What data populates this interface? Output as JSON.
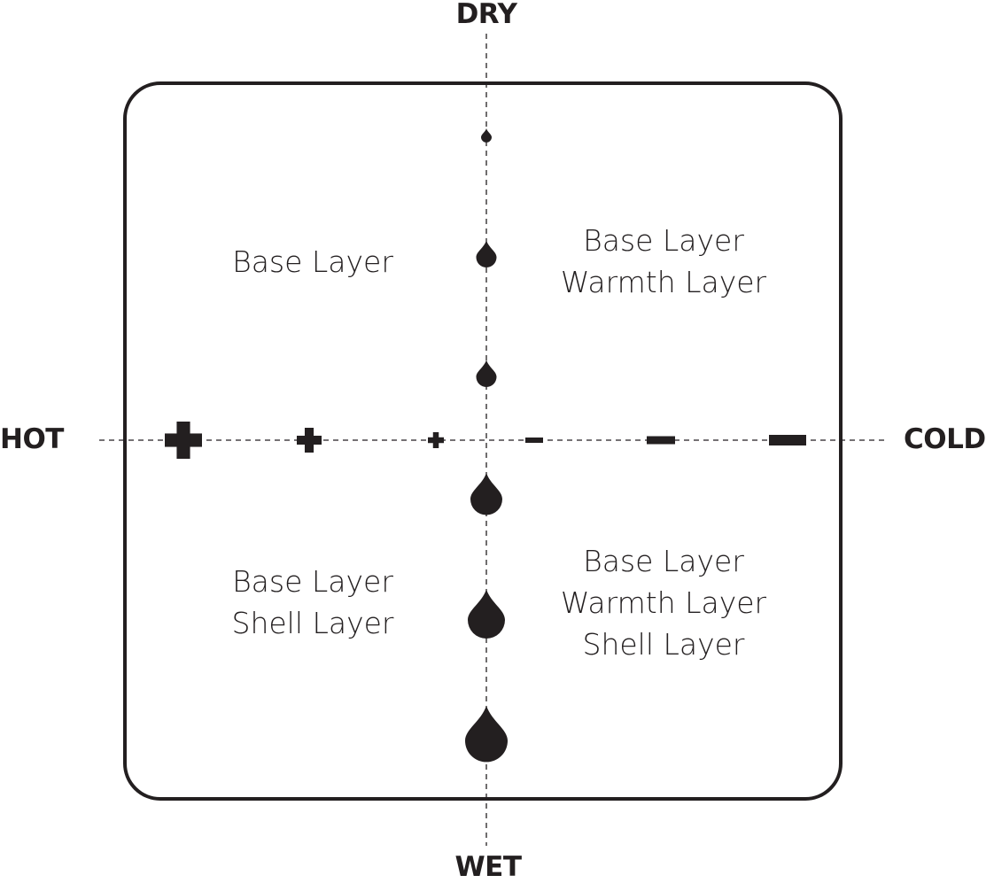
{
  "axes": {
    "top": "DRY",
    "bottom": "WET",
    "left": "HOT",
    "right": "COLD"
  },
  "quadrants": {
    "top_left": [
      "Base Layer"
    ],
    "top_right": [
      "Base Layer",
      "Warmth Layer"
    ],
    "bottom_left": [
      "Base Layer",
      "Shell Layer"
    ],
    "bottom_right": [
      "Base Layer",
      "Warmth Layer",
      "Shell Layer"
    ]
  },
  "markers": {
    "dry_drops_levels": [
      1,
      2,
      2
    ],
    "wet_drops_levels": [
      3,
      4,
      5
    ],
    "hot_plus_levels": [
      3,
      2,
      1
    ],
    "cold_minus_levels": [
      1,
      2,
      3
    ]
  },
  "colors": {
    "ink": "#231f20",
    "background": "#ffffff"
  }
}
